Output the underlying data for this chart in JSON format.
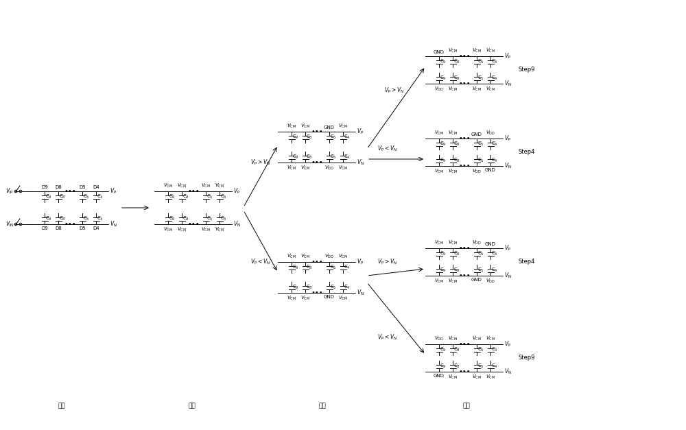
{
  "bg_color": "#ffffff",
  "sections": [
    "采样",
    "保持",
    "判断",
    "转换"
  ],
  "cap_labels": [
    "C$_9$",
    "C$_8$",
    "C$_5$",
    "C$_4$"
  ],
  "vcm": "$V_{\\mathrm{CM}}$",
  "vdd": "$V_{\\mathrm{DD}}$",
  "gnd": "GND",
  "vp": "$V_{\\mathrm{P}}$",
  "vn": "$V_{\\mathrm{N}}$",
  "vip": "$V_{\\mathrm{IP}}$",
  "vin": "$V_{\\mathrm{IN}}$",
  "vp_gt_vn": "$V_{\\mathrm{P}}{>}V_{\\mathrm{N}}$",
  "vp_lt_vn": "$V_{\\mathrm{P}}{<}V_{\\mathrm{N}}$",
  "step9": "Step9",
  "step4": "Step4",
  "d_labels": [
    "D9",
    "D8",
    "D5",
    "D4"
  ]
}
